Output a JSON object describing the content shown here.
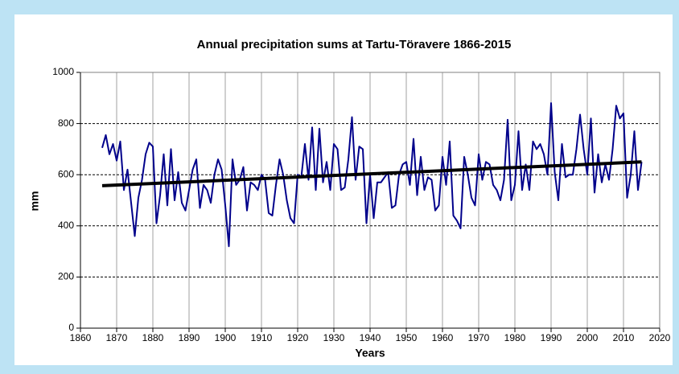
{
  "chart_data": {
    "type": "line",
    "title": "Annual precipitation sums at Tartu-Töravere 1866-2015",
    "x_label": "Years",
    "y_label": "mm",
    "x": [
      1866,
      1867,
      1868,
      1869,
      1870,
      1871,
      1872,
      1873,
      1874,
      1875,
      1876,
      1877,
      1878,
      1879,
      1880,
      1881,
      1882,
      1883,
      1884,
      1885,
      1886,
      1887,
      1888,
      1889,
      1890,
      1891,
      1892,
      1893,
      1894,
      1895,
      1896,
      1897,
      1898,
      1899,
      1900,
      1901,
      1902,
      1903,
      1904,
      1905,
      1906,
      1907,
      1908,
      1909,
      1910,
      1911,
      1912,
      1913,
      1914,
      1915,
      1916,
      1917,
      1918,
      1919,
      1920,
      1921,
      1922,
      1923,
      1924,
      1925,
      1926,
      1927,
      1928,
      1929,
      1930,
      1931,
      1932,
      1933,
      1934,
      1935,
      1936,
      1937,
      1938,
      1939,
      1940,
      1941,
      1942,
      1943,
      1944,
      1945,
      1946,
      1947,
      1948,
      1949,
      1950,
      1951,
      1952,
      1953,
      1954,
      1955,
      1956,
      1957,
      1958,
      1959,
      1960,
      1961,
      1962,
      1963,
      1964,
      1965,
      1966,
      1967,
      1968,
      1969,
      1970,
      1971,
      1972,
      1973,
      1974,
      1975,
      1976,
      1977,
      1978,
      1979,
      1980,
      1981,
      1982,
      1983,
      1984,
      1985,
      1986,
      1987,
      1988,
      1989,
      1990,
      1991,
      1992,
      1993,
      1994,
      1995,
      1996,
      1997,
      1998,
      1999,
      2000,
      2001,
      2002,
      2003,
      2004,
      2005,
      2006,
      2007,
      2008,
      2009,
      2010,
      2011,
      2012,
      2013,
      2014,
      2015
    ],
    "series": [
      {
        "color": "#00008b",
        "values": [
          705,
          755,
          680,
          720,
          655,
          730,
          540,
          620,
          490,
          360,
          510,
          580,
          680,
          725,
          710,
          410,
          520,
          680,
          480,
          700,
          500,
          610,
          490,
          460,
          540,
          620,
          660,
          470,
          560,
          540,
          490,
          600,
          660,
          620,
          480,
          320,
          660,
          560,
          580,
          630,
          460,
          570,
          560,
          540,
          600,
          580,
          450,
          440,
          560,
          660,
          600,
          500,
          430,
          410,
          600,
          590,
          720,
          580,
          785,
          540,
          780,
          570,
          650,
          540,
          720,
          700,
          540,
          550,
          660,
          825,
          580,
          710,
          700,
          410,
          600,
          430,
          570,
          570,
          590,
          610,
          470,
          480,
          600,
          640,
          650,
          560,
          740,
          520,
          670,
          540,
          590,
          580,
          460,
          480,
          670,
          560,
          730,
          440,
          420,
          390,
          670,
          600,
          510,
          480,
          680,
          580,
          650,
          640,
          560,
          540,
          500,
          580,
          815,
          500,
          560,
          770,
          540,
          640,
          540,
          730,
          700,
          720,
          680,
          600,
          880,
          610,
          500,
          720,
          590,
          600,
          600,
          700,
          835,
          700,
          600,
          820,
          530,
          680,
          570,
          640,
          580,
          700,
          870,
          820,
          840,
          510,
          600,
          770,
          540,
          650
        ]
      },
      {
        "color": "#000000",
        "x": [
          1866,
          2015
        ],
        "values": [
          557,
          650
        ]
      }
    ],
    "xlim": [
      1860,
      2020
    ],
    "xticks": [
      1860,
      1870,
      1880,
      1890,
      1900,
      1910,
      1920,
      1930,
      1940,
      1950,
      1960,
      1970,
      1980,
      1990,
      2000,
      2010,
      2020
    ],
    "ylim": [
      0,
      1000
    ],
    "yticks": [
      0,
      200,
      400,
      600,
      800,
      1000
    ],
    "grid": true
  }
}
